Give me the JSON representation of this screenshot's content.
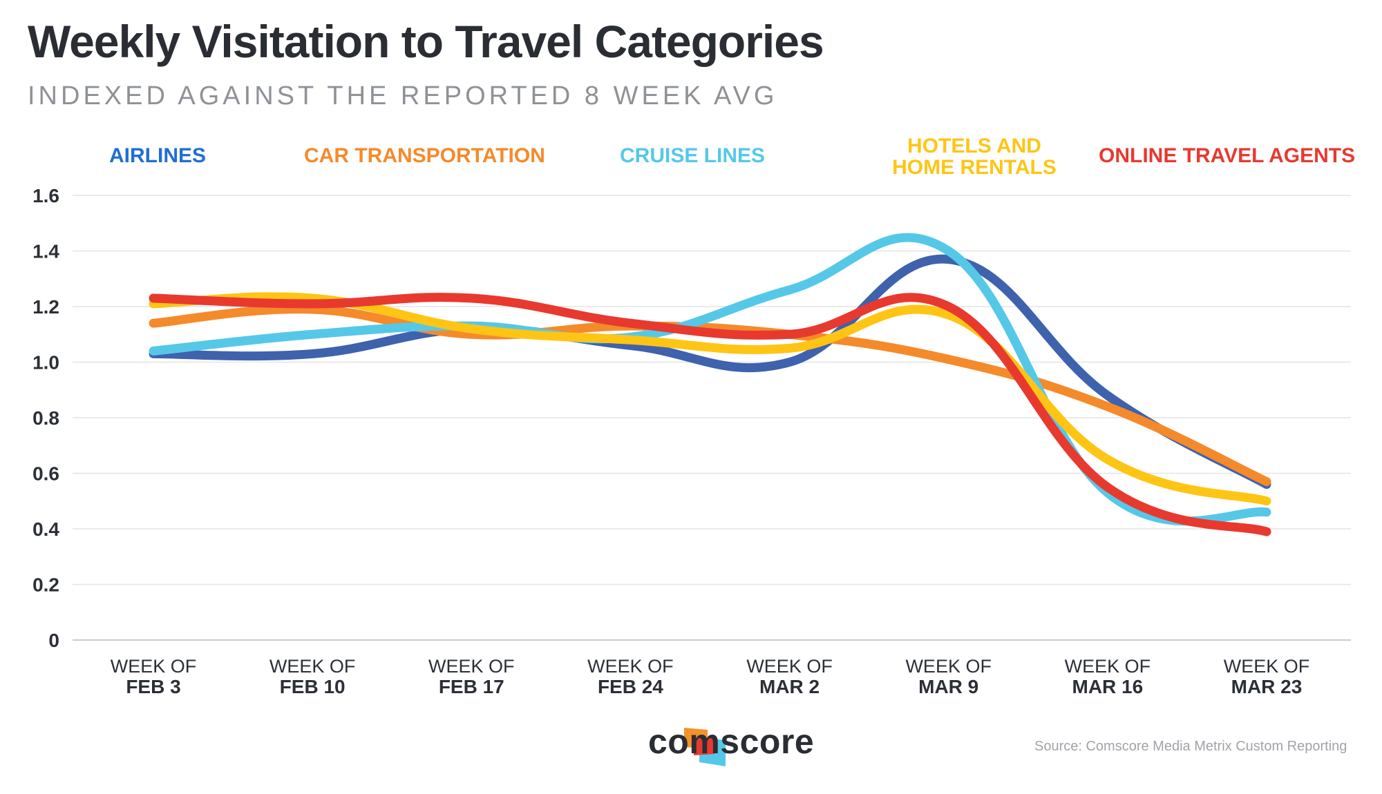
{
  "chart_data": {
    "type": "line",
    "title": "Weekly Visitation to Travel Categories",
    "subtitle": "INDEXED AGAINST THE REPORTED 8 WEEK AVG",
    "categories": [
      {
        "line1": "WEEK OF",
        "line2": "FEB 3"
      },
      {
        "line1": "WEEK OF",
        "line2": "FEB 10"
      },
      {
        "line1": "WEEK OF",
        "line2": "FEB 17"
      },
      {
        "line1": "WEEK OF",
        "line2": "FEB 24"
      },
      {
        "line1": "WEEK OF",
        "line2": "MAR 2"
      },
      {
        "line1": "WEEK OF",
        "line2": "MAR 9"
      },
      {
        "line1": "WEEK OF",
        "line2": "MAR 16"
      },
      {
        "line1": "WEEK OF",
        "line2": "MAR 23"
      }
    ],
    "ylim": [
      0,
      1.6
    ],
    "yticks": [
      "0",
      "0.2",
      "0.4",
      "0.6",
      "0.8",
      "1.0",
      "1.2",
      "1.4",
      "1.6"
    ],
    "yticks_values": [
      0,
      0.2,
      0.4,
      0.6,
      0.8,
      1.0,
      1.2,
      1.4,
      1.6
    ],
    "grid": true,
    "legend_position": "top",
    "series": [
      {
        "name": "AIRLINES",
        "color": "#3f62ad",
        "legend_color": "#1f6ed4",
        "values": [
          1.03,
          1.03,
          1.12,
          1.06,
          1.0,
          1.37,
          0.88,
          0.56
        ]
      },
      {
        "name": "CAR TRANSPORTATION",
        "color": "#f58a2b",
        "legend_color": "#f58a2b",
        "values": [
          1.14,
          1.19,
          1.1,
          1.13,
          1.1,
          1.01,
          0.84,
          0.57
        ]
      },
      {
        "name": "CRUISE LINES",
        "color": "#55c8e8",
        "legend_color": "#55c8e8",
        "values": [
          1.04,
          1.1,
          1.13,
          1.09,
          1.26,
          1.4,
          0.53,
          0.46
        ]
      },
      {
        "name": "HOTELS AND HOME RENTALS",
        "legend_line1": "HOTELS AND",
        "legend_line2": "HOME RENTALS",
        "color": "#fec514",
        "legend_color": "#fec514",
        "values": [
          1.21,
          1.23,
          1.12,
          1.08,
          1.05,
          1.17,
          0.65,
          0.5
        ]
      },
      {
        "name": "ONLINE TRAVEL AGENTS",
        "color": "#e8392f",
        "legend_color": "#e8392f",
        "values": [
          1.23,
          1.21,
          1.23,
          1.14,
          1.1,
          1.2,
          0.55,
          0.39
        ]
      }
    ]
  },
  "logo": {
    "text": "comscore",
    "colors": [
      "#f79229",
      "#e8392f",
      "#55c8e8"
    ]
  },
  "source": "Source: Comscore Media Metrix Custom Reporting"
}
